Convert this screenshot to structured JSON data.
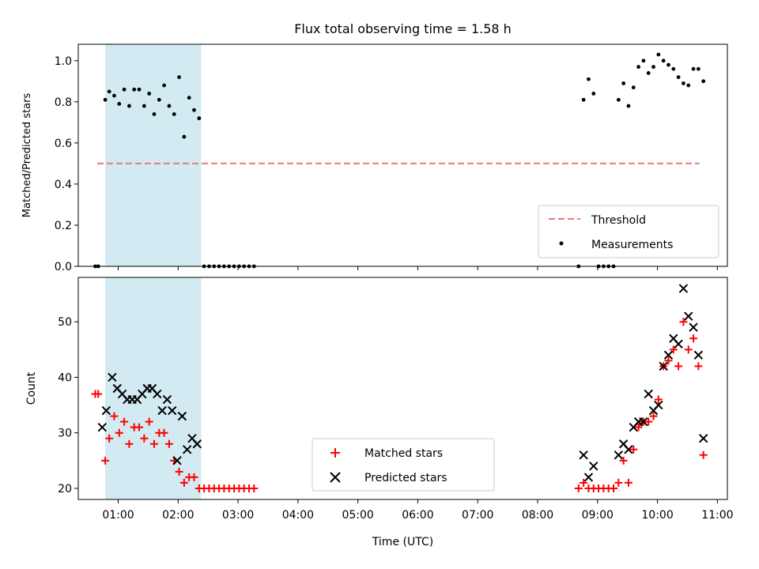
{
  "chart_data": [
    {
      "type": "scatter",
      "title": "Flux total observing time = 1.58 h",
      "xlabel": "",
      "ylabel": "Matched/Predicted stars",
      "xlim": [
        "00:20",
        "11:10"
      ],
      "ylim": [
        0,
        1.08
      ],
      "yticks": [
        "0.0",
        "0.2",
        "0.4",
        "0.6",
        "0.8",
        "1.0"
      ],
      "legend_position": "lower-right",
      "shaded_interval": [
        "00:47",
        "02:23"
      ],
      "threshold": {
        "name": "Threshold",
        "y": 0.5,
        "x_range": [
          "00:39",
          "10:42"
        ],
        "style": "dashed",
        "color": "#f07878"
      },
      "series": [
        {
          "name": "Measurements",
          "marker": "dot",
          "color": "#000000",
          "points": [
            [
              "00:37",
              0.0
            ],
            [
              "00:40",
              0.0
            ],
            [
              "00:47",
              0.81
            ],
            [
              "00:51",
              0.85
            ],
            [
              "00:56",
              0.83
            ],
            [
              "01:01",
              0.79
            ],
            [
              "01:06",
              0.86
            ],
            [
              "01:11",
              0.78
            ],
            [
              "01:16",
              0.86
            ],
            [
              "01:21",
              0.86
            ],
            [
              "01:26",
              0.78
            ],
            [
              "01:31",
              0.84
            ],
            [
              "01:36",
              0.74
            ],
            [
              "01:41",
              0.81
            ],
            [
              "01:46",
              0.88
            ],
            [
              "01:51",
              0.78
            ],
            [
              "01:56",
              0.74
            ],
            [
              "02:01",
              0.92
            ],
            [
              "02:06",
              0.63
            ],
            [
              "02:11",
              0.82
            ],
            [
              "02:16",
              0.76
            ],
            [
              "02:21",
              0.72
            ],
            [
              "02:26",
              0.0
            ],
            [
              "02:31",
              0.0
            ],
            [
              "02:36",
              0.0
            ],
            [
              "02:41",
              0.0
            ],
            [
              "02:46",
              0.0
            ],
            [
              "02:51",
              0.0
            ],
            [
              "02:56",
              0.0
            ],
            [
              "03:01",
              0.0
            ],
            [
              "03:06",
              0.0
            ],
            [
              "03:11",
              0.0
            ],
            [
              "03:16",
              0.0
            ],
            [
              "08:41",
              0.0
            ],
            [
              "08:46",
              0.81
            ],
            [
              "08:51",
              0.91
            ],
            [
              "08:56",
              0.84
            ],
            [
              "09:01",
              0.0
            ],
            [
              "09:06",
              0.0
            ],
            [
              "09:11",
              0.0
            ],
            [
              "09:16",
              0.0
            ],
            [
              "09:21",
              0.81
            ],
            [
              "09:26",
              0.89
            ],
            [
              "09:31",
              0.78
            ],
            [
              "09:36",
              0.87
            ],
            [
              "09:41",
              0.97
            ],
            [
              "09:46",
              1.0
            ],
            [
              "09:51",
              0.94
            ],
            [
              "09:56",
              0.97
            ],
            [
              "10:01",
              1.03
            ],
            [
              "10:06",
              1.0
            ],
            [
              "10:11",
              0.98
            ],
            [
              "10:16",
              0.96
            ],
            [
              "10:21",
              0.92
            ],
            [
              "10:26",
              0.89
            ],
            [
              "10:31",
              0.88
            ],
            [
              "10:36",
              0.96
            ],
            [
              "10:41",
              0.96
            ],
            [
              "10:46",
              0.9
            ]
          ]
        }
      ]
    },
    {
      "type": "scatter",
      "title": "",
      "xlabel": "Time (UTC)",
      "ylabel": "Count",
      "xlim": [
        "00:20",
        "11:10"
      ],
      "ylim": [
        18,
        58
      ],
      "yticks": [
        "20",
        "30",
        "40",
        "50"
      ],
      "xticks": [
        "01:00",
        "02:00",
        "03:00",
        "04:00",
        "05:00",
        "06:00",
        "07:00",
        "08:00",
        "09:00",
        "10:00",
        "11:00"
      ],
      "legend_position": "lower-center",
      "shaded_interval": [
        "00:47",
        "02:23"
      ],
      "series": [
        {
          "name": "Matched stars",
          "marker": "plus",
          "color": "#ff0000",
          "points": [
            [
              "00:37",
              37
            ],
            [
              "00:40",
              37
            ],
            [
              "00:47",
              25
            ],
            [
              "00:51",
              29
            ],
            [
              "00:56",
              33
            ],
            [
              "01:01",
              30
            ],
            [
              "01:06",
              32
            ],
            [
              "01:11",
              28
            ],
            [
              "01:16",
              31
            ],
            [
              "01:21",
              31
            ],
            [
              "01:26",
              29
            ],
            [
              "01:31",
              32
            ],
            [
              "01:36",
              28
            ],
            [
              "01:41",
              30
            ],
            [
              "01:46",
              30
            ],
            [
              "01:51",
              28
            ],
            [
              "01:56",
              25
            ],
            [
              "02:01",
              23
            ],
            [
              "02:06",
              21
            ],
            [
              "02:11",
              22
            ],
            [
              "02:16",
              22
            ],
            [
              "02:21",
              20
            ],
            [
              "02:26",
              20
            ],
            [
              "02:31",
              20
            ],
            [
              "02:36",
              20
            ],
            [
              "02:41",
              20
            ],
            [
              "02:46",
              20
            ],
            [
              "02:51",
              20
            ],
            [
              "02:56",
              20
            ],
            [
              "03:01",
              20
            ],
            [
              "03:06",
              20
            ],
            [
              "03:11",
              20
            ],
            [
              "03:16",
              20
            ],
            [
              "08:41",
              20
            ],
            [
              "08:46",
              21
            ],
            [
              "08:51",
              20
            ],
            [
              "08:56",
              20
            ],
            [
              "09:01",
              20
            ],
            [
              "09:06",
              20
            ],
            [
              "09:11",
              20
            ],
            [
              "09:16",
              20
            ],
            [
              "09:21",
              21
            ],
            [
              "09:26",
              25
            ],
            [
              "09:31",
              21
            ],
            [
              "09:36",
              27
            ],
            [
              "09:41",
              31
            ],
            [
              "09:46",
              32
            ],
            [
              "09:51",
              32
            ],
            [
              "09:56",
              33
            ],
            [
              "10:01",
              36
            ],
            [
              "10:06",
              42
            ],
            [
              "10:11",
              43
            ],
            [
              "10:16",
              45
            ],
            [
              "10:21",
              42
            ],
            [
              "10:26",
              50
            ],
            [
              "10:31",
              45
            ],
            [
              "10:36",
              47
            ],
            [
              "10:41",
              42
            ],
            [
              "10:46",
              26
            ]
          ]
        },
        {
          "name": "Predicted stars",
          "marker": "x",
          "color": "#000000",
          "points": [
            [
              "00:44",
              31
            ],
            [
              "00:48",
              34
            ],
            [
              "00:54",
              40
            ],
            [
              "00:59",
              38
            ],
            [
              "01:04",
              37
            ],
            [
              "01:09",
              36
            ],
            [
              "01:14",
              36
            ],
            [
              "01:19",
              36
            ],
            [
              "01:24",
              37
            ],
            [
              "01:29",
              38
            ],
            [
              "01:34",
              38
            ],
            [
              "01:39",
              37
            ],
            [
              "01:44",
              34
            ],
            [
              "01:49",
              36
            ],
            [
              "01:54",
              34
            ],
            [
              "01:59",
              25
            ],
            [
              "02:04",
              33
            ],
            [
              "02:09",
              27
            ],
            [
              "02:14",
              29
            ],
            [
              "02:19",
              28
            ],
            [
              "08:46",
              26
            ],
            [
              "08:51",
              22
            ],
            [
              "08:56",
              24
            ],
            [
              "09:21",
              26
            ],
            [
              "09:26",
              28
            ],
            [
              "09:31",
              27
            ],
            [
              "09:36",
              31
            ],
            [
              "09:41",
              32
            ],
            [
              "09:46",
              32
            ],
            [
              "09:51",
              37
            ],
            [
              "09:56",
              34
            ],
            [
              "10:01",
              35
            ],
            [
              "10:06",
              42
            ],
            [
              "10:11",
              44
            ],
            [
              "10:16",
              47
            ],
            [
              "10:21",
              46
            ],
            [
              "10:26",
              56
            ],
            [
              "10:31",
              51
            ],
            [
              "10:36",
              49
            ],
            [
              "10:41",
              44
            ],
            [
              "10:46",
              29
            ]
          ]
        }
      ]
    }
  ]
}
